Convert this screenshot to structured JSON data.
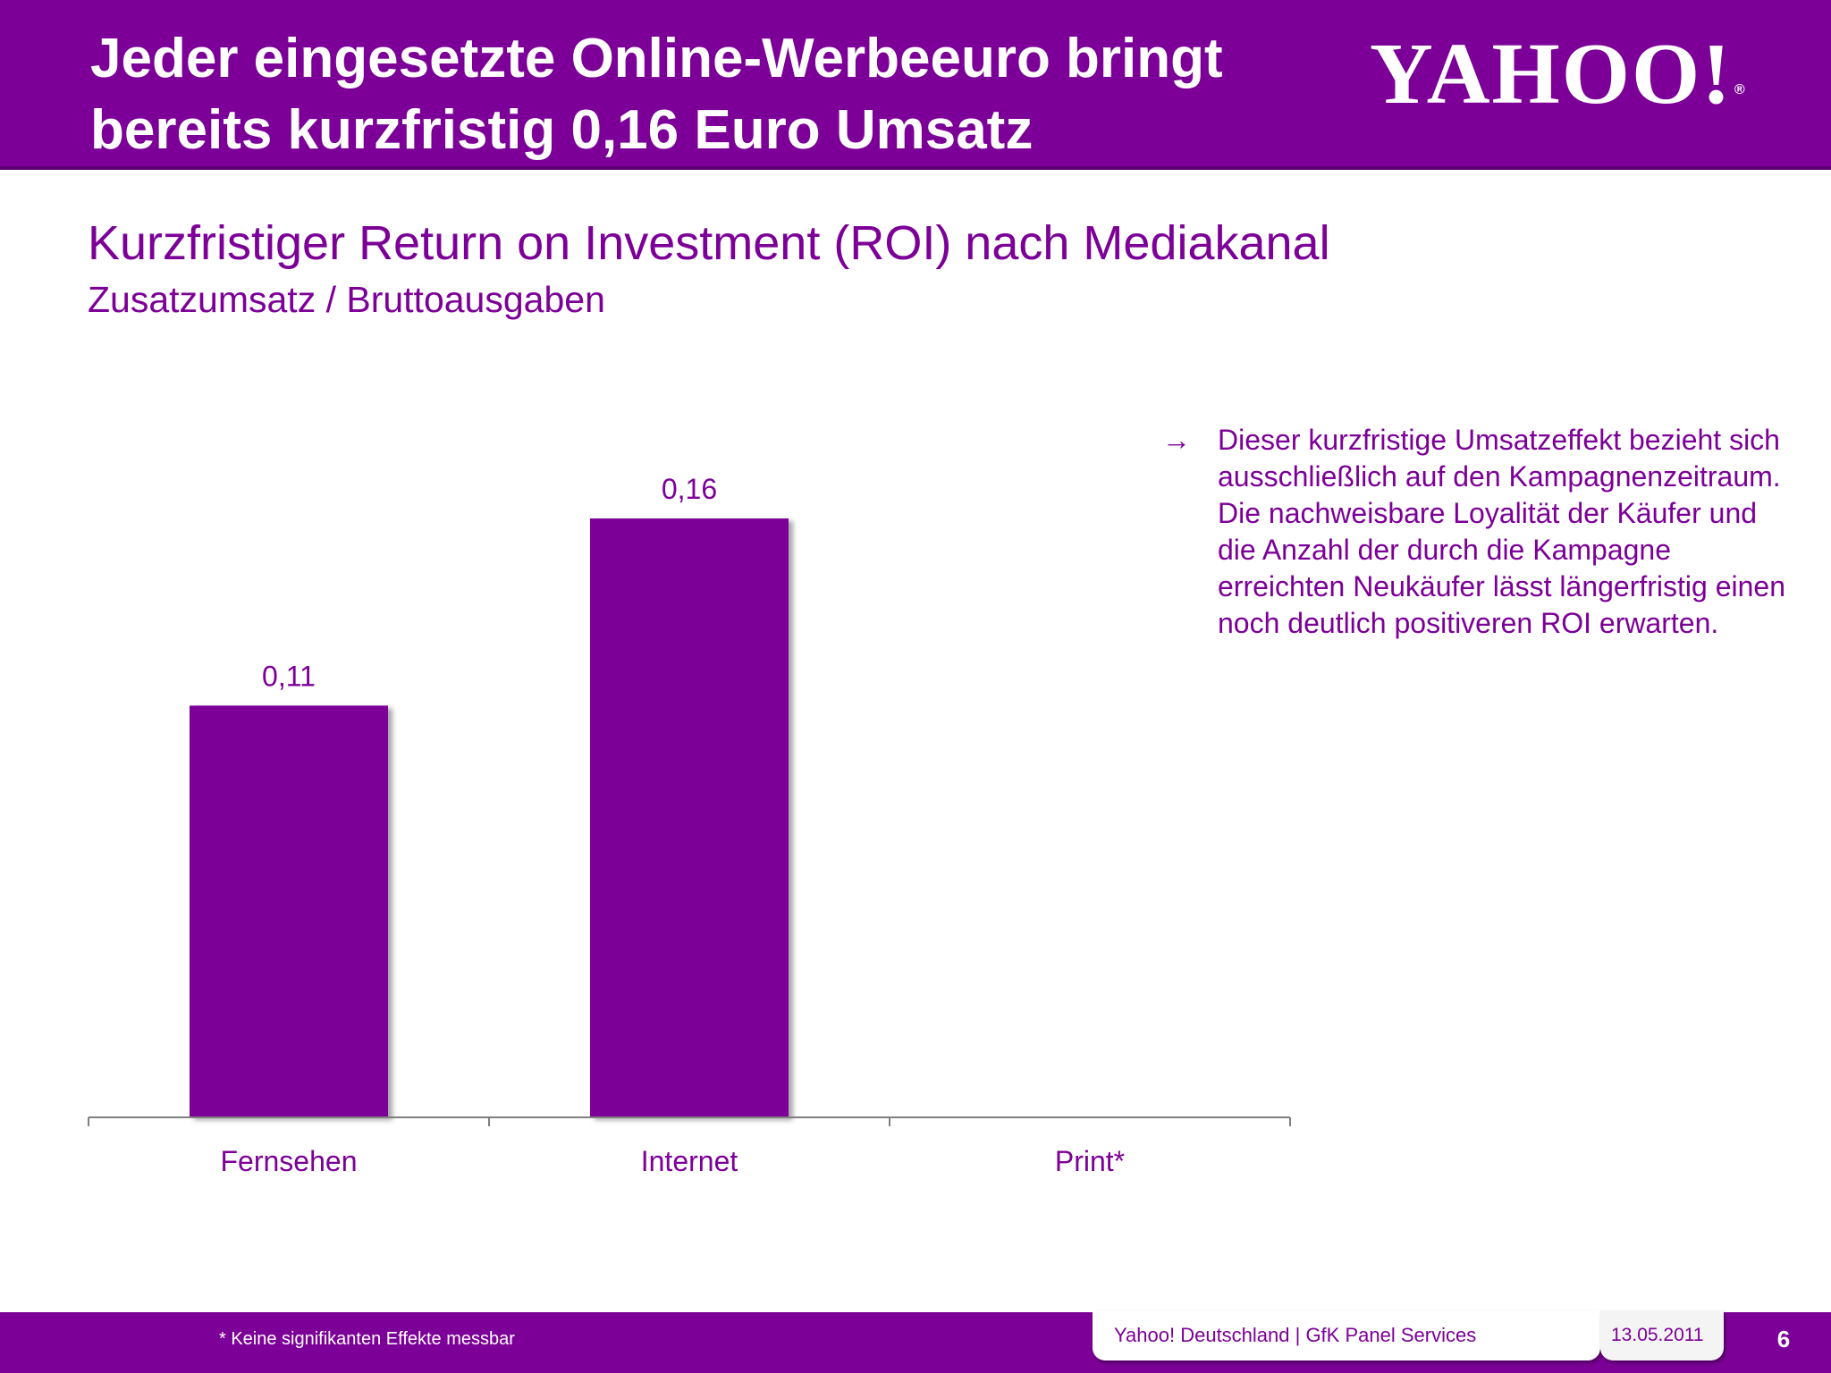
{
  "header": {
    "title_line1": "Jeder eingesetzte Online-Werbeeuro bringt",
    "title_line2": "bereits kurzfristig 0,16 Euro Umsatz",
    "logo_text": "YAHOO!",
    "logo_reg": "®"
  },
  "subtitle": "Kurzfristiger Return on Investment (ROI) nach Mediakanal",
  "subtitle2": "Zusatzumsatz / Bruttoausgaben",
  "chart_data": {
    "type": "bar",
    "categories": [
      "Fernsehen",
      "Internet",
      "Print*"
    ],
    "values": [
      0.11,
      0.16,
      null
    ],
    "value_labels": [
      "0,11",
      "0,16",
      ""
    ],
    "ylim": [
      0,
      0.2
    ],
    "grid": false,
    "legend": "none",
    "bar_color": "#7c0097"
  },
  "note": {
    "arrow_icon": "arrow-right-icon",
    "text": "Dieser kurzfristige Umsatzeffekt bezieht sich ausschließlich auf den Kampagnenzeitraum. Die nachweisbare Loyalität der Käufer und die Anzahl der durch die Kampagne erreichten Neukäufer lässt längerfristig einen noch deutlich positiveren ROI erwarten."
  },
  "footer": {
    "footnote": "* Keine signifikanten Effekte messbar",
    "company": "Yahoo! Deutschland | GfK Panel Services",
    "date": "13.05.2011",
    "page_number": "6"
  },
  "colors": {
    "brand": "#7c0097",
    "text": "#7c0097",
    "axis": "#7f7f7f"
  }
}
